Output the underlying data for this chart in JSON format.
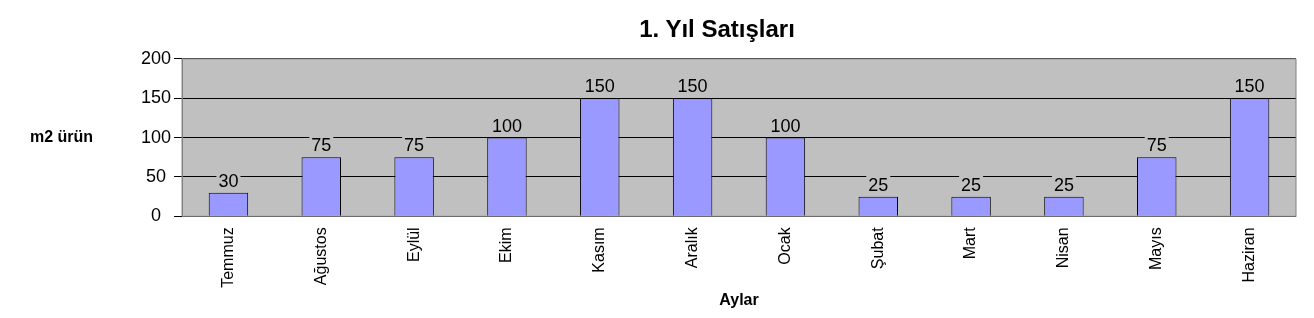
{
  "chart_data": {
    "type": "bar",
    "title": "1. Yıl Satışları",
    "xlabel": "Aylar",
    "ylabel": "m2 ürün",
    "categories": [
      "Temmuz",
      "Ağustos",
      "Eylül",
      "Ekim",
      "Kasım",
      "Aralık",
      "Ocak",
      "Şubat",
      "Mart",
      "Nisan",
      "Mayıs",
      "Haziran"
    ],
    "values": [
      30,
      75,
      75,
      100,
      150,
      150,
      100,
      25,
      25,
      25,
      75,
      150
    ],
    "color": "#9999ff",
    "ylim": [
      0,
      200
    ],
    "yticks": [
      0,
      50,
      100,
      150,
      200
    ],
    "grid": "y",
    "data_labels": true
  }
}
